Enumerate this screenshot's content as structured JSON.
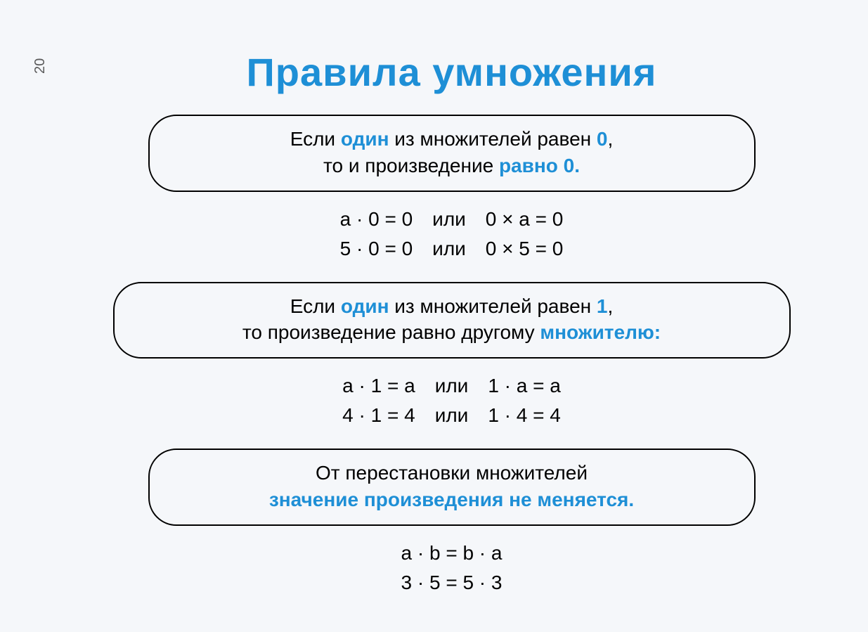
{
  "accent_color": "#1e8fd6",
  "page_number": "20",
  "title": "Правила умножения",
  "rule1": {
    "line1_a": "Если ",
    "line1_hl": "один",
    "line1_b": " из множителей равен ",
    "line1_hl2": "0",
    "line1_c": ",",
    "line2_a": "то и произведение ",
    "line2_hl": "равно 0."
  },
  "examples1": {
    "row1_left": "a · 0 = 0",
    "row1_mid": "или",
    "row1_right": "0 × a = 0",
    "row2_left": "5 · 0 = 0",
    "row2_mid": "или",
    "row2_right": "0 × 5 = 0"
  },
  "rule2": {
    "line1_a": "Если ",
    "line1_hl": "один",
    "line1_b": " из множителей равен ",
    "line1_hl2": "1",
    "line1_c": ",",
    "line2_a": "то произведение равно другому ",
    "line2_hl": "множителю:"
  },
  "examples2": {
    "row1_left": "a · 1 = a",
    "row1_mid": "или",
    "row1_right": "1 · a = a",
    "row2_left": "4 · 1 = 4",
    "row2_mid": "или",
    "row2_right": "1 · 4 = 4"
  },
  "rule3": {
    "line1": "От перестановки множителей",
    "line2_hl": "значение произведения не меняется."
  },
  "examples3": {
    "row1": "a · b = b · a",
    "row2": "3 · 5 = 5 · 3"
  }
}
